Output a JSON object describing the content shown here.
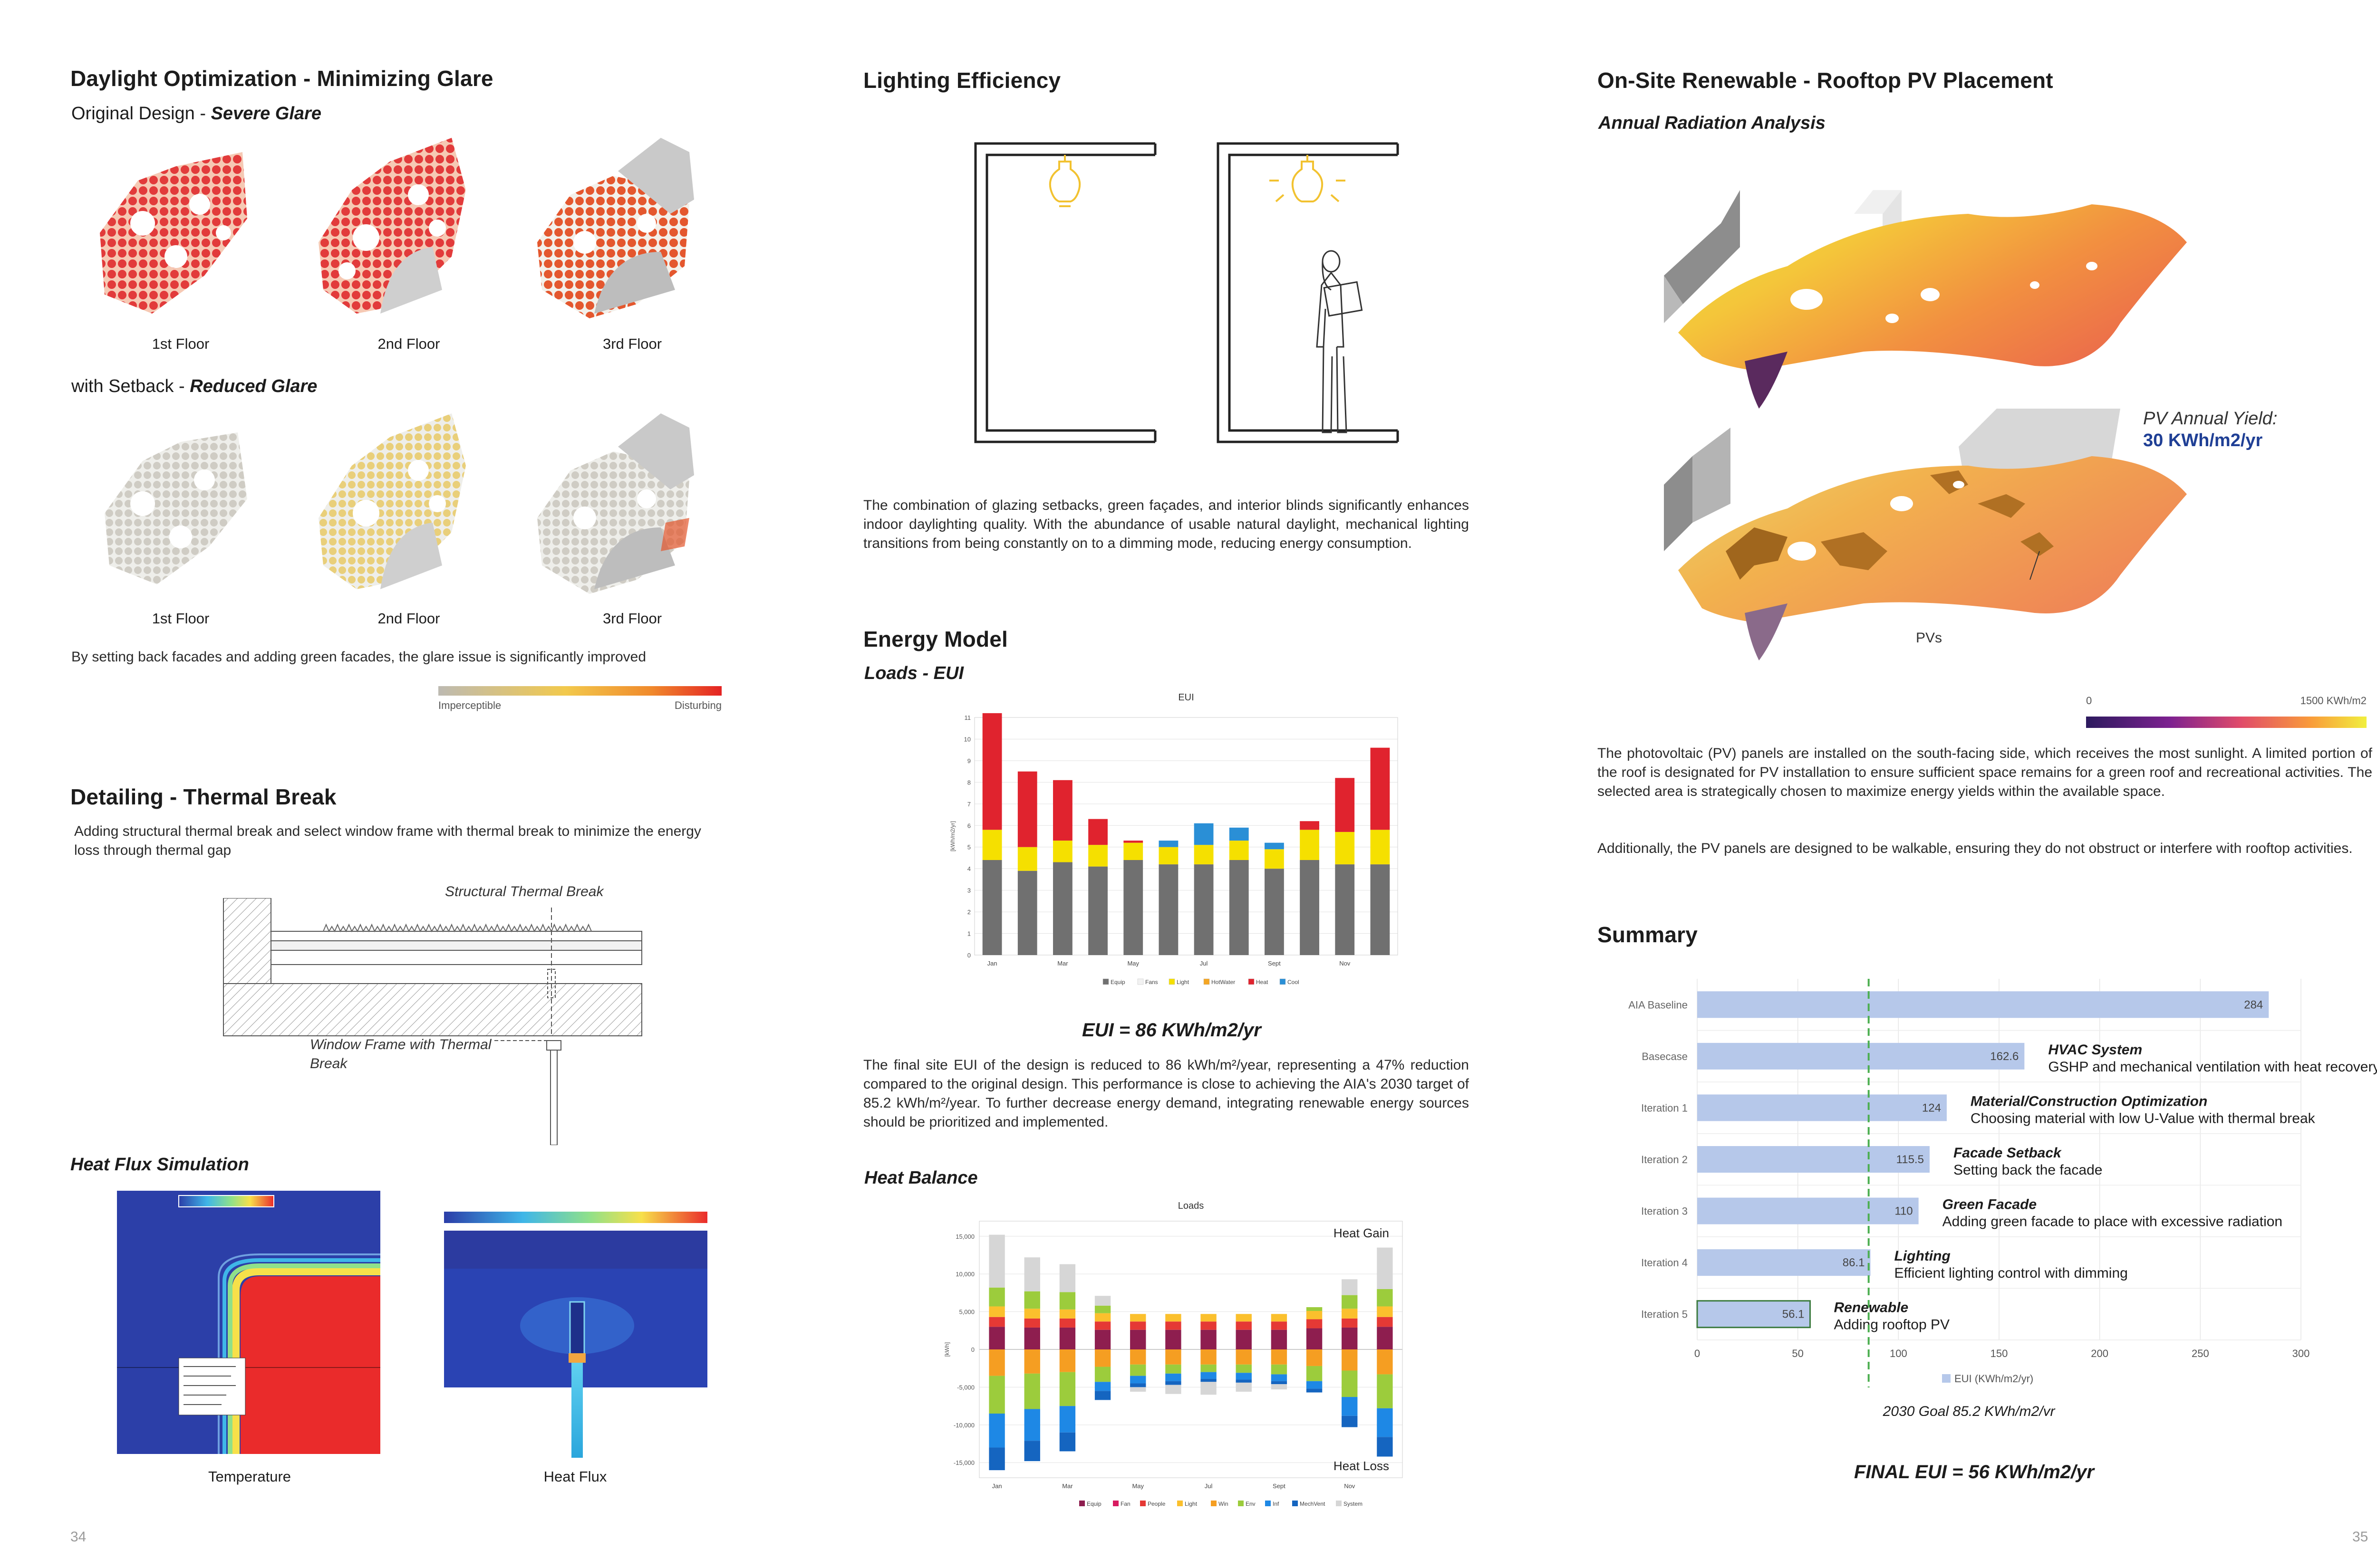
{
  "left": {
    "daylight": {
      "title": "Daylight Optimization - Minimizing Glare",
      "orig_prefix": "Original Design - ",
      "orig_emph": "Severe Glare",
      "setback_prefix": "with Setback - ",
      "setback_emph": "Reduced Glare",
      "floors": [
        "1st Floor",
        "2nd Floor",
        "3rd Floor"
      ],
      "note": "By setting back facades and adding green facades, the glare issue is significantly improved",
      "scale_low": "Imperceptible",
      "scale_high": "Disturbing"
    },
    "thermal": {
      "title": "Detailing - Thermal Break",
      "desc": "Adding structural thermal break and select window frame with thermal break to minimize the energy loss through thermal gap",
      "label_struct": "Structural Thermal Break",
      "label_window_1": "Window Frame with Thermal",
      "label_window_2": "Break"
    },
    "heatflux": {
      "title": "Heat Flux Simulation",
      "cap_temp": "Temperature",
      "cap_flux": "Heat Flux"
    },
    "page": "34"
  },
  "middle": {
    "lighting": {
      "title": "Lighting Efficiency",
      "desc": "The combination of glazing setbacks, green façades, and interior blinds significantly enhances indoor daylighting quality. With the abundance of usable natural daylight, mechanical lighting transitions from being constantly on to a dimming mode, reducing energy consumption."
    },
    "energy": {
      "title": "Energy Model",
      "subtitle": "Loads - EUI",
      "eui_result": "EUI = 86 KWh/m2/yr",
      "desc": "The final site EUI of the design is reduced to 86 kWh/m²/year, representing a 47% reduction compared to the original design. This performance is close to achieving the AIA's 2030 target of 85.2 kWh/m²/year. To further decrease energy demand, integrating renewable energy sources should be prioritized and implemented.",
      "heat_balance_title": "Heat Balance"
    }
  },
  "right": {
    "pv": {
      "title": "On-Site Renewable - Rooftop PV Placement",
      "subtitle": "Annual Radiation Analysis",
      "yield_label": "PV Annual Yield:",
      "yield_value": "30 KWh/m2/yr",
      "pvs_label": "PVs",
      "scale_min": "0",
      "scale_max": "1500 KWh/m2",
      "desc1": "The photovoltaic (PV) panels are installed on the south-facing side, which receives the most sunlight. A limited portion of the roof is designated for PV installation to ensure sufficient space remains for a green roof and recreational activities. The selected area is strategically chosen to maximize energy yields within the available space.",
      "desc2": "Additionally, the PV panels are designed to be walkable, ensuring they do not obstruct or interfere with rooftop activities."
    },
    "summary": {
      "title": "Summary",
      "goal_label": "2030 Goal 85.2 KWh/m2/yr",
      "final": "FINAL EUI = 56 KWh/m2/yr",
      "legend": "EUI (KWh/m2/yr)"
    },
    "page": "35"
  },
  "colors": {
    "accent_blue": "#1f3f95",
    "glare_red": "#e23b3b",
    "bar_blue": "#b6c8ea",
    "goal_green": "#4caf50"
  },
  "chart_data": [
    {
      "id": "eui",
      "type": "bar",
      "title": "EUI",
      "ylabel": "[kWh/m2/yr]",
      "ylim": [
        0,
        11
      ],
      "yticks": [
        0,
        1,
        2,
        3,
        4,
        5,
        6,
        7,
        8,
        9,
        10,
        11
      ],
      "categories": [
        "Jan",
        "Feb",
        "Mar",
        "Apr",
        "May",
        "Jun",
        "Jul",
        "Aug",
        "Sept",
        "Oct",
        "Nov",
        "Dec"
      ],
      "tick_labels": [
        "Jan",
        "",
        "Mar",
        "",
        "May",
        "",
        "Jul",
        "",
        "Sept",
        "",
        "Nov",
        ""
      ],
      "stacked": true,
      "series": [
        {
          "name": "Equip",
          "color": "#707070",
          "values": [
            4.4,
            3.9,
            4.3,
            4.1,
            4.4,
            4.2,
            4.2,
            4.4,
            4.0,
            4.4,
            4.2,
            4.2
          ]
        },
        {
          "name": "Fans",
          "color": "#f2f2f2",
          "values": [
            0,
            0,
            0,
            0,
            0,
            0,
            0,
            0,
            0,
            0,
            0,
            0
          ]
        },
        {
          "name": "Light",
          "color": "#f5e000",
          "values": [
            1.4,
            1.1,
            1.0,
            1.0,
            0.8,
            0.8,
            0.9,
            0.9,
            0.9,
            1.4,
            1.5,
            1.6
          ]
        },
        {
          "name": "HotWater",
          "color": "#f5a623",
          "values": [
            0,
            0,
            0,
            0,
            0,
            0,
            0,
            0,
            0,
            0,
            0,
            0
          ]
        },
        {
          "name": "Heat",
          "color": "#e0232e",
          "values": [
            5.4,
            3.5,
            2.8,
            1.2,
            0.1,
            0,
            0,
            0,
            0,
            0.4,
            2.5,
            3.8
          ]
        },
        {
          "name": "Cool",
          "color": "#2a8fd6",
          "values": [
            0,
            0,
            0,
            0,
            0,
            0.3,
            1.0,
            0.6,
            0.3,
            0,
            0,
            0
          ]
        }
      ]
    },
    {
      "id": "loads",
      "type": "bar",
      "title": "Loads",
      "ylabel": "[kWh]",
      "ylim": [
        -17000,
        17000
      ],
      "yticks": [
        -15000,
        -10000,
        -5000,
        0,
        5000,
        10000,
        15000
      ],
      "ytick_labels": [
        "-15,000",
        "-10,000",
        "-5,000",
        "0",
        "5,000",
        "10,000",
        "15,000"
      ],
      "categories": [
        "Jan",
        "Feb",
        "Mar",
        "Apr",
        "May",
        "Jun",
        "Jul",
        "Aug",
        "Sept",
        "Oct",
        "Nov",
        "Dec"
      ],
      "tick_labels": [
        "Jan",
        "",
        "Mar",
        "",
        "May",
        "",
        "Jul",
        "",
        "Sept",
        "",
        "Nov",
        ""
      ],
      "annot_top": "Heat Gain",
      "annot_bottom": "Heat Loss",
      "stacked": true,
      "series": [
        {
          "name": "Equip",
          "color": "#8e1e4f",
          "values": [
            3000,
            2900,
            2900,
            2600,
            2600,
            2600,
            2600,
            2600,
            2600,
            2800,
            2900,
            3000
          ]
        },
        {
          "name": "Fan",
          "color": "#d81b60",
          "values": [
            0,
            0,
            0,
            0,
            0,
            0,
            0,
            0,
            0,
            0,
            0,
            0
          ]
        },
        {
          "name": "People",
          "color": "#e53935",
          "values": [
            1300,
            1200,
            1200,
            1100,
            1100,
            1100,
            1100,
            1100,
            1100,
            1200,
            1200,
            1300
          ]
        },
        {
          "name": "Light",
          "color": "#fbc02d",
          "values": [
            1400,
            1300,
            1200,
            1100,
            1000,
            1000,
            1000,
            1000,
            1000,
            1100,
            1300,
            1400
          ]
        },
        {
          "name": "Win",
          "color": "#f59e22",
          "values": [
            0,
            0,
            0,
            0,
            0,
            0,
            0,
            0,
            0,
            0,
            0,
            0
          ]
        },
        {
          "name": "Env",
          "color": "#9ccc3c",
          "values": [
            2500,
            2300,
            2300,
            1000,
            0,
            0,
            0,
            0,
            0,
            500,
            1800,
            2300
          ]
        },
        {
          "name": "Inf",
          "color": "#1e88e5",
          "values": [
            0,
            0,
            0,
            0,
            0,
            0,
            0,
            0,
            0,
            0,
            0,
            0
          ]
        },
        {
          "name": "MechVent",
          "color": "#1565c0",
          "values": [
            0,
            0,
            0,
            0,
            0,
            0,
            0,
            0,
            0,
            0,
            0,
            0
          ]
        },
        {
          "name": "System",
          "color": "#d6d6d6",
          "values": [
            7000,
            4500,
            3700,
            1300,
            0,
            0,
            0,
            0,
            0,
            0,
            2100,
            5500
          ]
        },
        {
          "name": "Win",
          "color": "#f59e22",
          "values": [
            -3500,
            -3200,
            -3000,
            -2300,
            -2000,
            -2000,
            -2000,
            -2000,
            -2000,
            -2200,
            -2800,
            -3300
          ]
        },
        {
          "name": "Env",
          "color": "#9ccc3c",
          "values": [
            -5000,
            -4700,
            -4500,
            -2000,
            -1500,
            -1200,
            -1000,
            -1100,
            -1300,
            -2000,
            -3500,
            -4500
          ]
        },
        {
          "name": "Inf",
          "color": "#1e88e5",
          "values": [
            -4500,
            -4200,
            -3500,
            -1200,
            -1000,
            -1000,
            -900,
            -900,
            -900,
            -1000,
            -2500,
            -3800
          ]
        },
        {
          "name": "MechVent",
          "color": "#1565c0",
          "values": [
            -3000,
            -2700,
            -2500,
            -1200,
            -500,
            -500,
            -400,
            -400,
            -400,
            -500,
            -1500,
            -2600
          ]
        },
        {
          "name": "System",
          "color": "#d6d6d6",
          "values": [
            0,
            0,
            0,
            0,
            -600,
            -1200,
            -1700,
            -1200,
            -700,
            0,
            0,
            0
          ]
        }
      ]
    },
    {
      "id": "summary",
      "type": "bar",
      "orientation": "horizontal",
      "categories": [
        "AIA Baseline",
        "Basecase",
        "Iteration 1",
        "Iteration 2",
        "Iteration 3",
        "Iteration 4",
        "Iteration 5"
      ],
      "values": [
        284,
        162.6,
        124,
        115.5,
        110,
        86.1,
        56.1
      ],
      "value_labels": [
        "284",
        "162.6",
        "124",
        "115.5",
        "110",
        "86.1",
        "56.1"
      ],
      "xlim": [
        0,
        300
      ],
      "xticks": [
        0,
        50,
        100,
        150,
        200,
        250,
        300
      ],
      "goal": 85.2,
      "annotations": [
        {
          "title": "",
          "text": ""
        },
        {
          "title": "HVAC System",
          "text": "GSHP and mechanical ventilation with heat recovery"
        },
        {
          "title": "Material/Construction Optimization",
          "text": "Choosing material with low U-Value with thermal break"
        },
        {
          "title": "Facade Setback",
          "text": "Setting back the facade"
        },
        {
          "title": "Green Facade",
          "text": "Adding green facade to place with excessive radiation"
        },
        {
          "title": "Lighting",
          "text": "Efficient lighting control with dimming"
        },
        {
          "title": "Renewable",
          "text": "Adding rooftop PV"
        }
      ]
    }
  ]
}
